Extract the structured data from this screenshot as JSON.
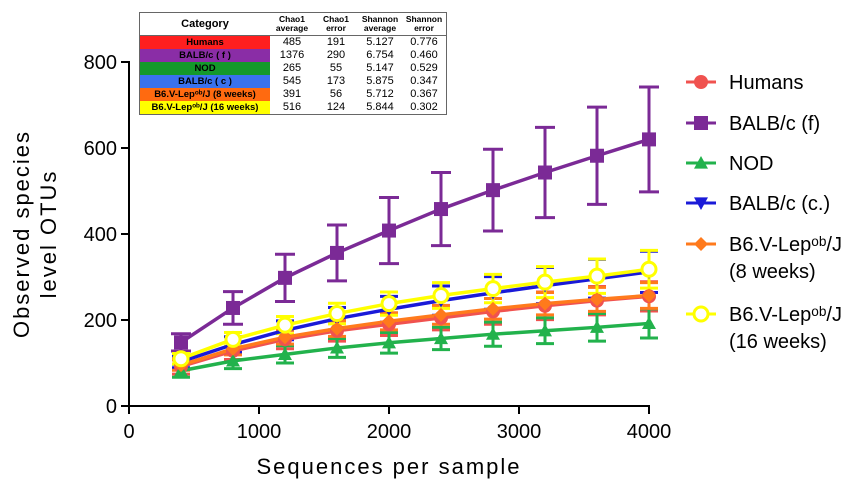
{
  "colors": {
    "Humans": "#f0524f",
    "BALB/c (f)": "#7b2a96",
    "NOD": "#22b24c",
    "BALB/c (c.)": "#1a1ad8",
    "B6 8 weeks": "#ff7a1c",
    "B6 16 weeks": "#ffff00"
  },
  "table": {
    "headers": [
      "Category",
      "Chao1 average",
      "Chao1 error",
      "Shannon average",
      "Shannon error"
    ],
    "rows": [
      {
        "category": "Humans",
        "bg": "#ff1f1f",
        "chao1_avg": "485",
        "chao1_err": "191",
        "shannon_avg": "5.127",
        "shannon_err": "0.776"
      },
      {
        "category": "BALB/c ( f )",
        "bg": "#8a2da6",
        "chao1_avg": "1376",
        "chao1_err": "290",
        "shannon_avg": "6.754",
        "shannon_err": "0.460"
      },
      {
        "category": "NOD",
        "bg": "#14992b",
        "chao1_avg": "265",
        "chao1_err": "55",
        "shannon_avg": "5.147",
        "shannon_err": "0.529"
      },
      {
        "category": "BALB/c ( c )",
        "bg": "#3a72ee",
        "chao1_avg": "545",
        "chao1_err": "173",
        "shannon_avg": "5.875",
        "shannon_err": "0.347"
      },
      {
        "category": "B6.V-Lepᵒᵇ/J (8 weeks)",
        "bg": "#ff6a10",
        "chao1_avg": "391",
        "chao1_err": "56",
        "shannon_avg": "5.712",
        "shannon_err": "0.367"
      },
      {
        "category": "B6.V-Lepᵒᵇ/J (16 weeks)",
        "bg": "#ffff00",
        "chao1_avg": "516",
        "chao1_err": "124",
        "shannon_avg": "5.844",
        "shannon_err": "0.302"
      }
    ]
  },
  "chart_data": {
    "type": "line",
    "title": "",
    "xlabel": "Sequences per sample",
    "ylabel_lines": [
      "Observed species",
      "level OTUs"
    ],
    "xlim": [
      0,
      4000
    ],
    "ylim": [
      0,
      800
    ],
    "xticks": [
      0,
      1000,
      2000,
      3000,
      4000
    ],
    "yticks": [
      0,
      200,
      400,
      600,
      800
    ],
    "grid": false,
    "legend_position": "right",
    "x": [
      400,
      800,
      1200,
      1600,
      2000,
      2400,
      2800,
      3200,
      3600,
      4000
    ],
    "series": [
      {
        "name": "Humans",
        "marker": "circle",
        "values": [
          92,
          128,
          155,
          175,
          190,
          205,
          220,
          233,
          245,
          255
        ],
        "errors": [
          18,
          20,
          22,
          24,
          26,
          28,
          30,
          32,
          33,
          34
        ]
      },
      {
        "name": "BALB/c (f)",
        "marker": "square",
        "values": [
          148,
          228,
          298,
          356,
          408,
          458,
          502,
          543,
          582,
          620
        ],
        "errors": [
          20,
          38,
          55,
          65,
          77,
          85,
          95,
          105,
          113,
          122
        ]
      },
      {
        "name": "NOD",
        "marker": "triangle-up",
        "values": [
          82,
          105,
          120,
          135,
          147,
          157,
          167,
          175,
          183,
          192
        ],
        "errors": [
          15,
          18,
          20,
          22,
          24,
          26,
          28,
          30,
          32,
          34
        ]
      },
      {
        "name": "BALB/c (c.)",
        "marker": "triangle-down",
        "values": [
          103,
          143,
          176,
          203,
          225,
          245,
          263,
          280,
          296,
          312
        ],
        "errors": [
          14,
          18,
          22,
          26,
          30,
          34,
          38,
          42,
          45,
          48
        ]
      },
      {
        "name": "B6.V-Lepᵒᵇ/J (8 weeks)",
        "marker": "diamond",
        "values": [
          95,
          133,
          160,
          180,
          197,
          212,
          226,
          238,
          248,
          257
        ],
        "errors": [
          12,
          14,
          16,
          18,
          20,
          22,
          24,
          26,
          28,
          30
        ]
      },
      {
        "name": "B6.V-Lepᵒᵇ/J (16 weeks)",
        "marker": "open-circle",
        "values": [
          110,
          155,
          188,
          215,
          238,
          257,
          273,
          288,
          302,
          318
        ],
        "errors": [
          12,
          16,
          20,
          24,
          27,
          30,
          33,
          36,
          40,
          44
        ]
      }
    ]
  },
  "legend": [
    {
      "lines": [
        "Humans"
      ]
    },
    {
      "lines": [
        "BALB/c (f)"
      ]
    },
    {
      "lines": [
        "NOD"
      ]
    },
    {
      "lines": [
        "BALB/c (c.)"
      ]
    },
    {
      "lines": [
        "B6.V-Lepᵒᵇ/J",
        "(8 weeks)"
      ]
    },
    {
      "lines": [
        "B6.V-Lepᵒᵇ/J",
        "(16 weeks)"
      ]
    }
  ]
}
